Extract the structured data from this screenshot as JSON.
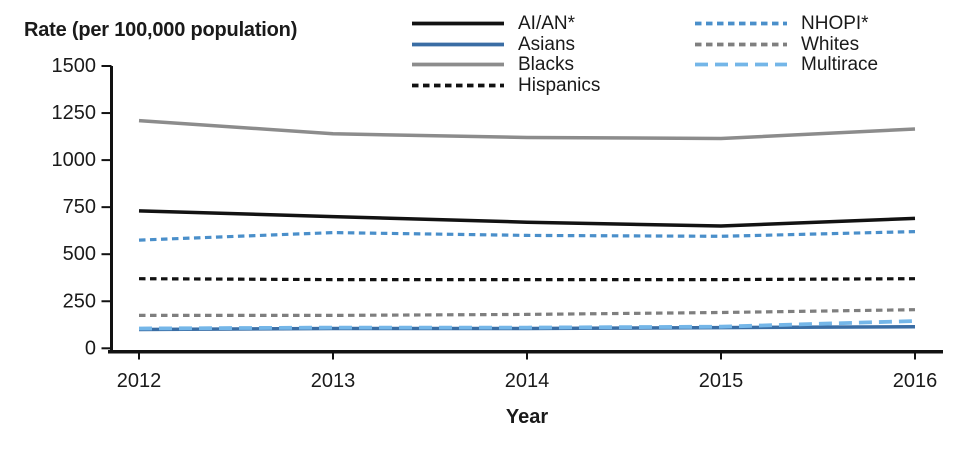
{
  "chart_data": {
    "type": "line",
    "title": "Rate (per 100,000 population)",
    "xlabel": "Year",
    "ylabel": "Rate (per 100,000 population)",
    "x": [
      2012,
      2013,
      2014,
      2015,
      2016
    ],
    "ylim": [
      0,
      1500
    ],
    "yticks": [
      0,
      250,
      500,
      750,
      1000,
      1250,
      1500
    ],
    "grid": false,
    "legend_position": "top, two columns",
    "axis_color": "#121212",
    "series": [
      {
        "name": "AI/AN*",
        "color": "#121212",
        "style": "solid",
        "legend_col": 0,
        "values": [
          730,
          700,
          670,
          650,
          690
        ]
      },
      {
        "name": "Asians",
        "color": "#3a6da4",
        "style": "solid",
        "legend_col": 0,
        "values": [
          100,
          105,
          105,
          110,
          115
        ]
      },
      {
        "name": "Blacks",
        "color": "#8c8c8c",
        "style": "solid",
        "legend_col": 0,
        "values": [
          1210,
          1140,
          1120,
          1115,
          1165
        ]
      },
      {
        "name": "Hispanics",
        "color": "#121212",
        "style": "dashed",
        "legend_col": 0,
        "values": [
          370,
          365,
          365,
          365,
          370
        ]
      },
      {
        "name": "NHOPI*",
        "color": "#4a8fca",
        "style": "dashed",
        "legend_col": 1,
        "values": [
          575,
          615,
          600,
          595,
          620
        ]
      },
      {
        "name": "Whites",
        "color": "#7f7f7f",
        "style": "dashed",
        "legend_col": 1,
        "values": [
          175,
          175,
          180,
          190,
          205
        ]
      },
      {
        "name": "Multirace",
        "color": "#74b6e8",
        "style": "longdash",
        "legend_col": 1,
        "values": [
          105,
          110,
          110,
          115,
          145
        ]
      }
    ]
  }
}
